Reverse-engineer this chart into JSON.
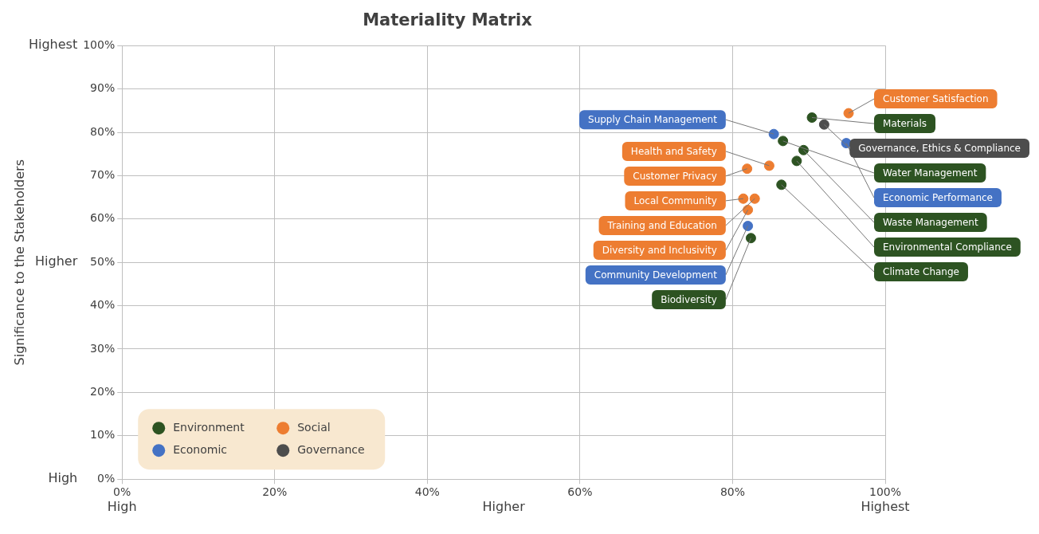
{
  "chart_data": {
    "type": "scatter",
    "title": "Materiality Matrix",
    "ylabel": "Significance to the Stakeholders",
    "xlim": [
      0,
      100
    ],
    "ylim": [
      0,
      100
    ],
    "xticks": [
      {
        "value": 0,
        "label": "0%"
      },
      {
        "value": 20,
        "label": "20%"
      },
      {
        "value": 40,
        "label": "40%"
      },
      {
        "value": 60,
        "label": "60%"
      },
      {
        "value": 80,
        "label": "80%"
      },
      {
        "value": 100,
        "label": "100%"
      }
    ],
    "yticks": [
      {
        "value": 0,
        "label": "0%"
      },
      {
        "value": 10,
        "label": "10%"
      },
      {
        "value": 20,
        "label": "20%"
      },
      {
        "value": 30,
        "label": "30%"
      },
      {
        "value": 40,
        "label": "40%"
      },
      {
        "value": 50,
        "label": "50%"
      },
      {
        "value": 60,
        "label": "60%"
      },
      {
        "value": 70,
        "label": "70%"
      },
      {
        "value": 80,
        "label": "80%"
      },
      {
        "value": 90,
        "label": "90%"
      },
      {
        "value": 100,
        "label": "100%"
      }
    ],
    "grid": true,
    "legend": "bottom left",
    "marker": "circle",
    "series": [
      {
        "name": "Environment",
        "color": "#2d5322",
        "x": [
          90.4,
          86.6,
          89.3,
          88.4,
          86.4,
          82.4
        ],
        "values": [
          83.4,
          78.0,
          75.9,
          73.4,
          67.9,
          55.6
        ]
      },
      {
        "name": "Social",
        "color": "#ed7d31",
        "x": [
          95.2,
          84.8,
          81.9,
          81.4,
          82.9,
          82.0
        ],
        "values": [
          84.4,
          72.3,
          71.6,
          64.7,
          64.7,
          62.1
        ]
      },
      {
        "name": "Economic",
        "color": "#4472c4",
        "x": [
          85.4,
          94.9,
          82.0
        ],
        "values": [
          79.6,
          77.5,
          58.4
        ]
      },
      {
        "name": "Governance",
        "color": "#4d4d4d",
        "x": [
          92.0
        ],
        "values": [
          81.8
        ]
      }
    ],
    "annotations": [
      "High",
      "Higher",
      "Highest",
      "High",
      "Higher",
      "Highest",
      {
        "text": "Materials",
        "x": 90.4,
        "y": 83.4
      },
      {
        "text": "Governance, Ethics & Compliance",
        "x": 92.0,
        "y": 81.8
      },
      {
        "text": "Customer Satisfaction",
        "x": 95.2,
        "y": 84.4
      },
      {
        "text": "Supply Chain Management",
        "x": 85.4,
        "y": 79.6
      },
      {
        "text": "Water Management",
        "x": 86.6,
        "y": 78.0
      },
      {
        "text": "Economic Performance",
        "x": 94.9,
        "y": 77.5
      },
      {
        "text": "Waste Management",
        "x": 89.3,
        "y": 75.9
      },
      {
        "text": "Health and Safety",
        "x": 84.8,
        "y": 72.3
      },
      {
        "text": "Environmental Compliance",
        "x": 88.4,
        "y": 73.4
      },
      {
        "text": "Customer Privacy",
        "x": 81.9,
        "y": 71.6
      },
      {
        "text": "Climate Change",
        "x": 86.4,
        "y": 67.9
      },
      {
        "text": "Local Community",
        "x": 81.4,
        "y": 64.7
      },
      {
        "text": "Training and Education",
        "x": 82.9,
        "y": 64.7
      },
      {
        "text": "Diversity and Inclusivity",
        "x": 82.0,
        "y": 62.1
      },
      {
        "text": "Community Development",
        "x": 82.0,
        "y": 58.4
      },
      {
        "text": "Biodiversity",
        "x": 82.4,
        "y": 55.6
      }
    ]
  }
}
